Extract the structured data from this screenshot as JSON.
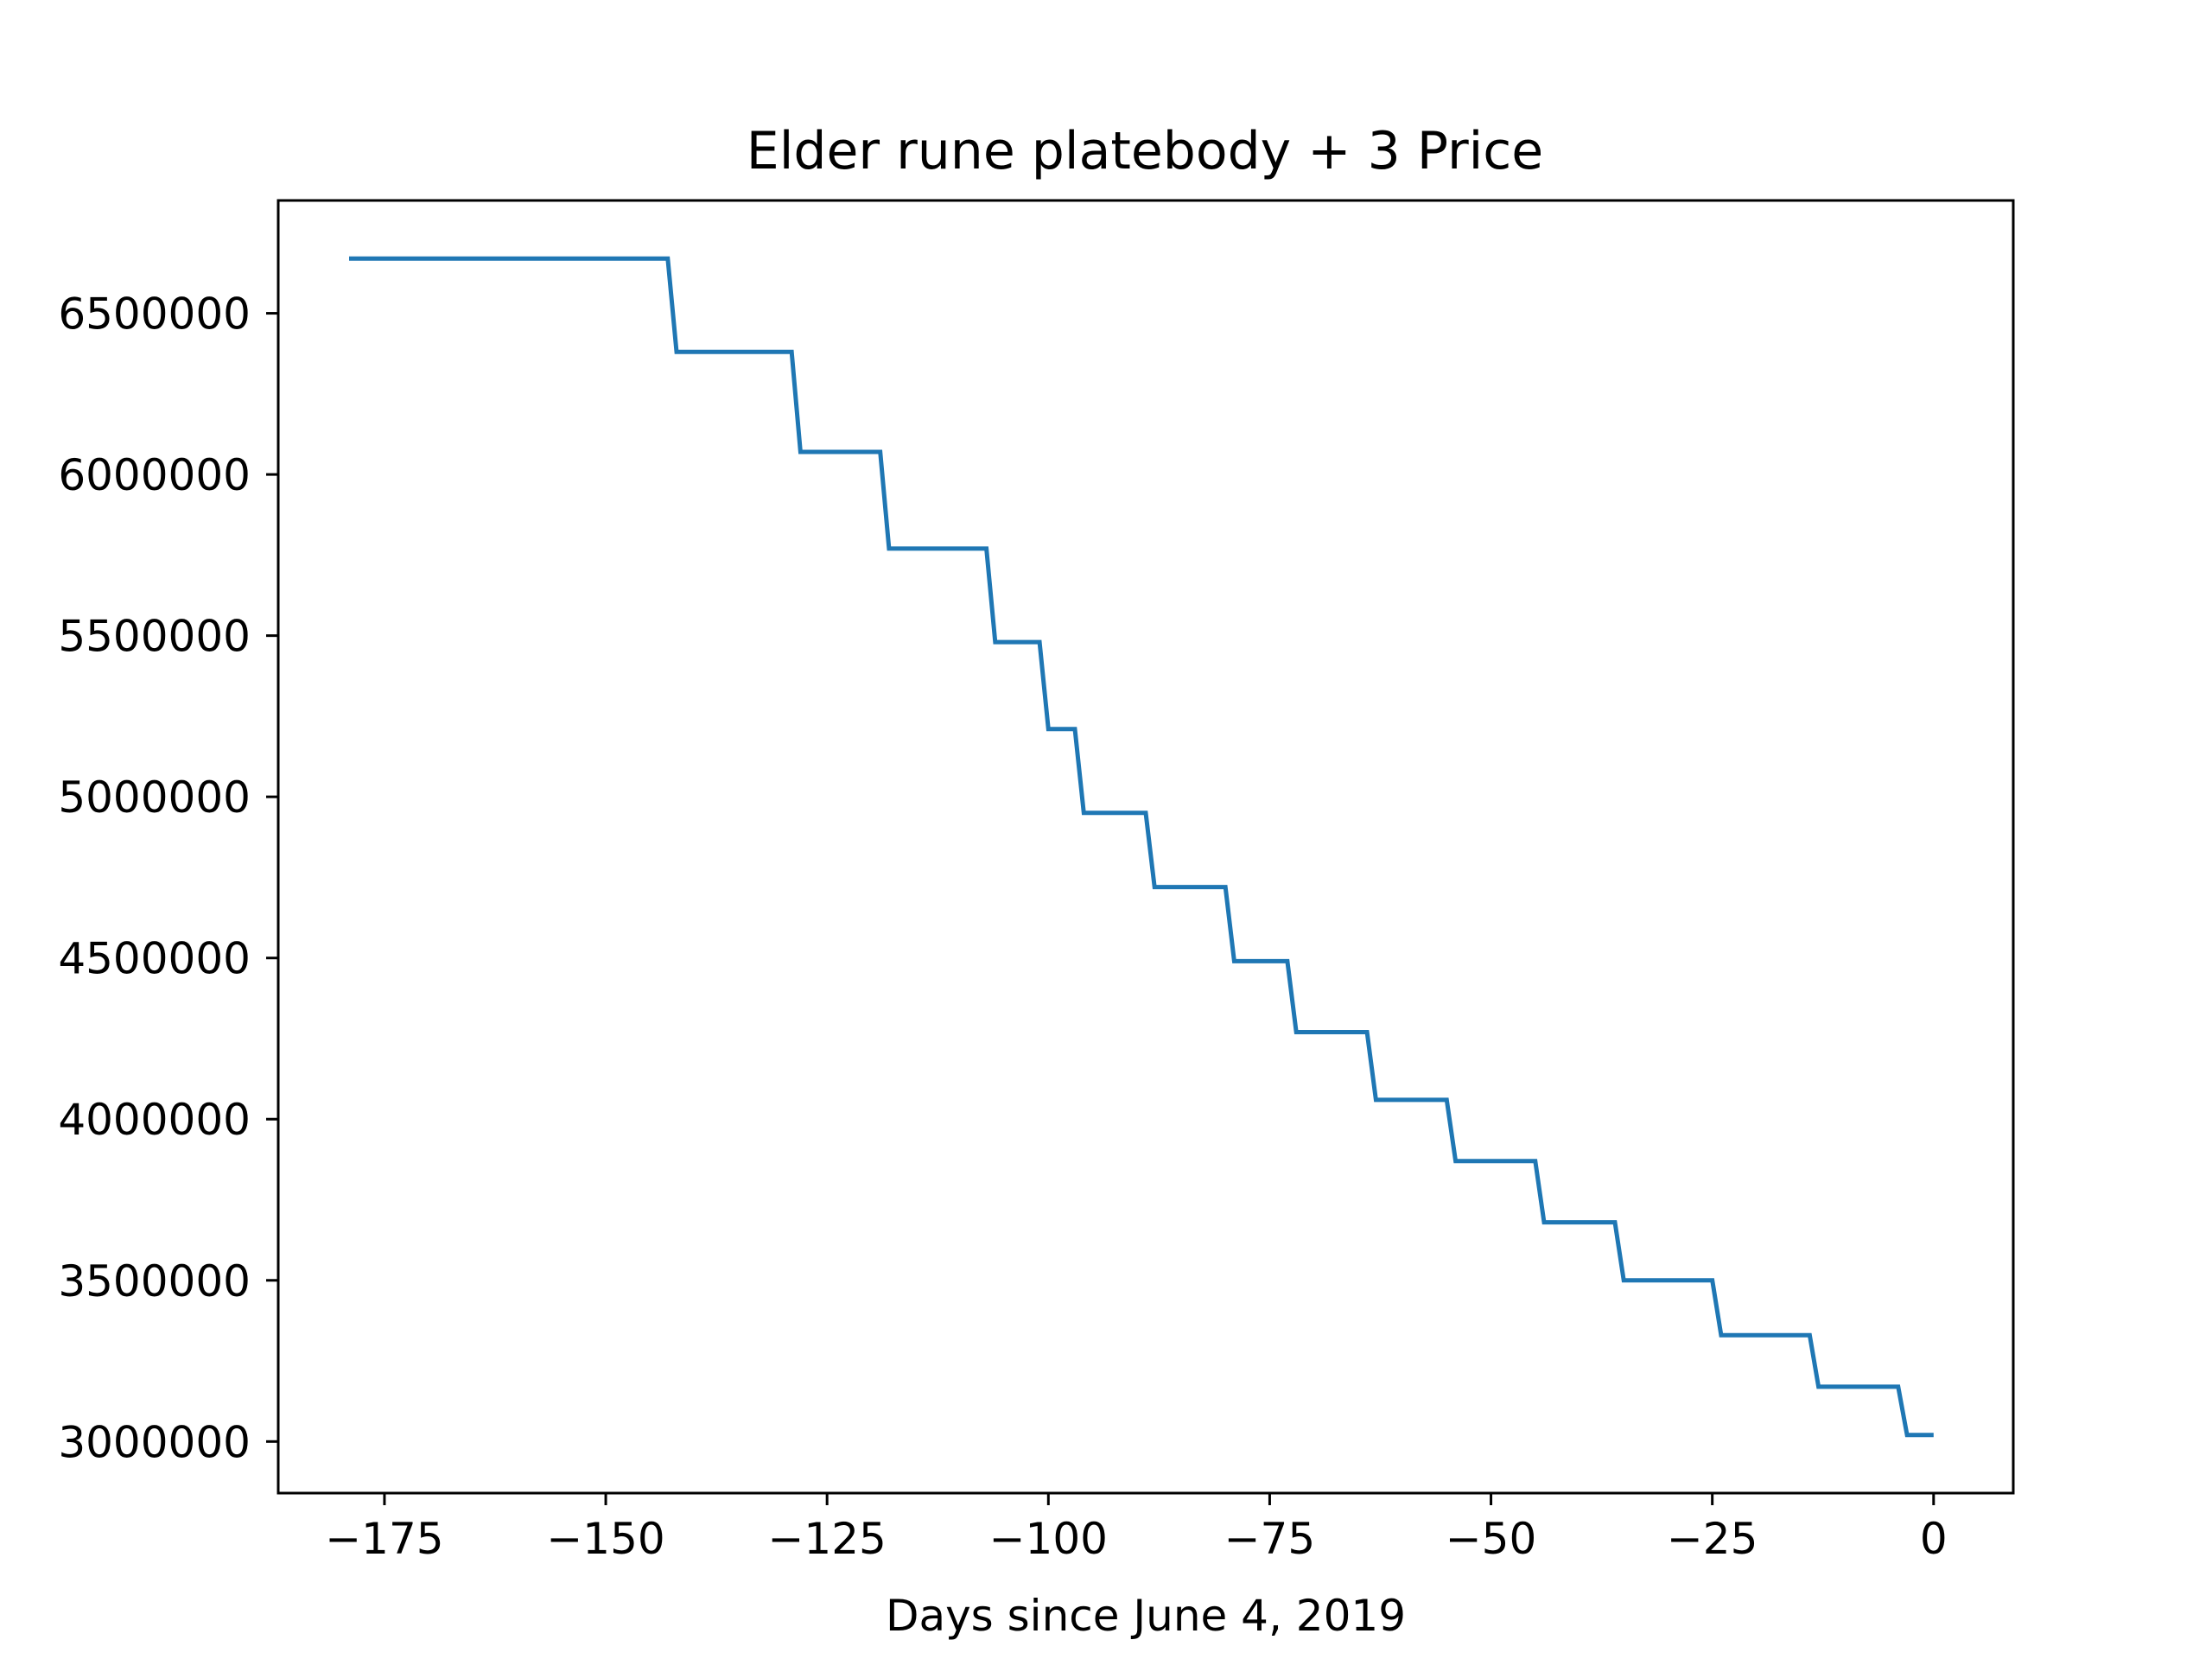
{
  "chart_data": {
    "type": "line",
    "title": "Elder rune platebody + 3 Price",
    "xlabel": "Days since June 4, 2019",
    "ylabel": "",
    "xlim": [
      -187,
      9
    ],
    "ylim": [
      2840000,
      6850000
    ],
    "grid": false,
    "line_color": "#1f77b4",
    "x_ticks": [
      -175,
      -150,
      -125,
      -100,
      -75,
      -50,
      -25,
      0
    ],
    "x_tick_labels": [
      "−175",
      "−150",
      "−125",
      "−100",
      "−75",
      "−50",
      "−25",
      "0"
    ],
    "y_ticks": [
      3000000,
      3500000,
      4000000,
      4500000,
      5000000,
      5500000,
      6000000,
      6500000
    ],
    "y_tick_labels": [
      "3000000",
      "3500000",
      "4000000",
      "4500000",
      "5000000",
      "5500000",
      "6000000",
      "6500000"
    ],
    "series": [
      {
        "x": [
          -179,
          -143,
          -142,
          -129,
          -128,
          -119,
          -118,
          -107,
          -106,
          -101,
          -100,
          -97,
          -96,
          -89,
          -88,
          -80,
          -79,
          -73,
          -72,
          -64,
          -63,
          -55,
          -54,
          -45,
          -44,
          -36,
          -35,
          -25,
          -24,
          -14,
          -13,
          -4,
          -3,
          0
        ],
        "y": [
          6670000,
          6670000,
          6380000,
          6380000,
          6070000,
          6070000,
          5770000,
          5770000,
          5480000,
          5480000,
          5210000,
          5210000,
          4950000,
          4950000,
          4720000,
          4720000,
          4490000,
          4490000,
          4270000,
          4270000,
          4060000,
          4060000,
          3870000,
          3870000,
          3680000,
          3680000,
          3500000,
          3500000,
          3330000,
          3330000,
          3170000,
          3170000,
          3020000,
          3020000
        ]
      }
    ]
  }
}
